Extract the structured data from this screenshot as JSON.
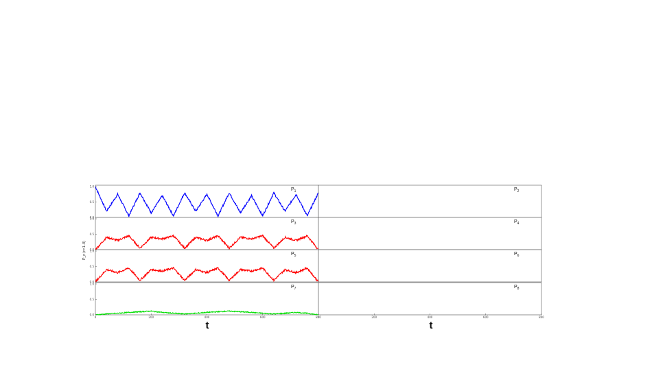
{
  "chart_data": {
    "type": "line",
    "xlabel": "t",
    "ylabel": "P_n (n=1..8)",
    "xlim": [
      0,
      800
    ],
    "ylim": [
      0.0,
      1.0
    ],
    "xticks": [
      "0",
      "200",
      "400",
      "600",
      "800"
    ],
    "yticks": [
      "0.0",
      "0.5",
      "1.0"
    ],
    "colors": {
      "p1": "#0000ff",
      "p3": "#ff0000",
      "p5": "#ff0000",
      "p7": "#00dd00",
      "flat": "#888888"
    },
    "panels": [
      {
        "label": "P",
        "sub": "1",
        "color": "#0000ff",
        "series": {
          "x": [
            0,
            40,
            80,
            120,
            160,
            200,
            240,
            280,
            320,
            360,
            400,
            440,
            480,
            520,
            560,
            600,
            640,
            680,
            720,
            760,
            800
          ],
          "y": [
            1.0,
            0.2,
            0.75,
            0.05,
            0.8,
            0.15,
            0.7,
            0.05,
            0.8,
            0.2,
            0.75,
            0.05,
            0.8,
            0.15,
            0.7,
            0.05,
            0.8,
            0.2,
            0.75,
            0.05,
            0.8
          ]
        }
      },
      {
        "label": "P",
        "sub": "2",
        "color": "#888888",
        "series": {
          "x": [
            0,
            800
          ],
          "y": [
            0,
            0
          ]
        }
      },
      {
        "label": "P",
        "sub": "3",
        "color": "#ff0000",
        "series": {
          "x": [
            0,
            40,
            80,
            120,
            160,
            200,
            240,
            280,
            320,
            360,
            400,
            440,
            480,
            520,
            560,
            600,
            640,
            680,
            720,
            760,
            800
          ],
          "y": [
            0.0,
            0.4,
            0.3,
            0.45,
            0.05,
            0.4,
            0.35,
            0.45,
            0.05,
            0.4,
            0.3,
            0.45,
            0.05,
            0.4,
            0.35,
            0.45,
            0.05,
            0.4,
            0.3,
            0.45,
            0.0
          ]
        }
      },
      {
        "label": "P",
        "sub": "4",
        "color": "#888888",
        "series": {
          "x": [
            0,
            800
          ],
          "y": [
            0,
            0
          ]
        }
      },
      {
        "label": "P",
        "sub": "5",
        "color": "#ff0000",
        "series": {
          "x": [
            0,
            40,
            80,
            120,
            160,
            200,
            240,
            280,
            320,
            360,
            400,
            440,
            480,
            520,
            560,
            600,
            640,
            680,
            720,
            760,
            800
          ],
          "y": [
            0.0,
            0.4,
            0.3,
            0.45,
            0.05,
            0.4,
            0.35,
            0.45,
            0.05,
            0.4,
            0.3,
            0.45,
            0.05,
            0.4,
            0.35,
            0.45,
            0.05,
            0.4,
            0.3,
            0.45,
            0.0
          ]
        }
      },
      {
        "label": "P",
        "sub": "6",
        "color": "#888888",
        "series": {
          "x": [
            0,
            800
          ],
          "y": [
            0,
            0
          ]
        }
      },
      {
        "label": "P",
        "sub": "7",
        "color": "#00dd00",
        "series": {
          "x": [
            0,
            40,
            80,
            120,
            160,
            200,
            240,
            280,
            320,
            360,
            400,
            440,
            480,
            520,
            560,
            600,
            640,
            680,
            720,
            760,
            800
          ],
          "y": [
            0.0,
            0.03,
            0.05,
            0.08,
            0.1,
            0.12,
            0.08,
            0.05,
            0.03,
            0.05,
            0.08,
            0.1,
            0.12,
            0.1,
            0.08,
            0.05,
            0.03,
            0.05,
            0.08,
            0.05,
            0.0
          ]
        }
      },
      {
        "label": "P",
        "sub": "8",
        "color": "#888888",
        "series": {
          "x": [
            0,
            800
          ],
          "y": [
            0,
            0
          ]
        }
      }
    ]
  }
}
